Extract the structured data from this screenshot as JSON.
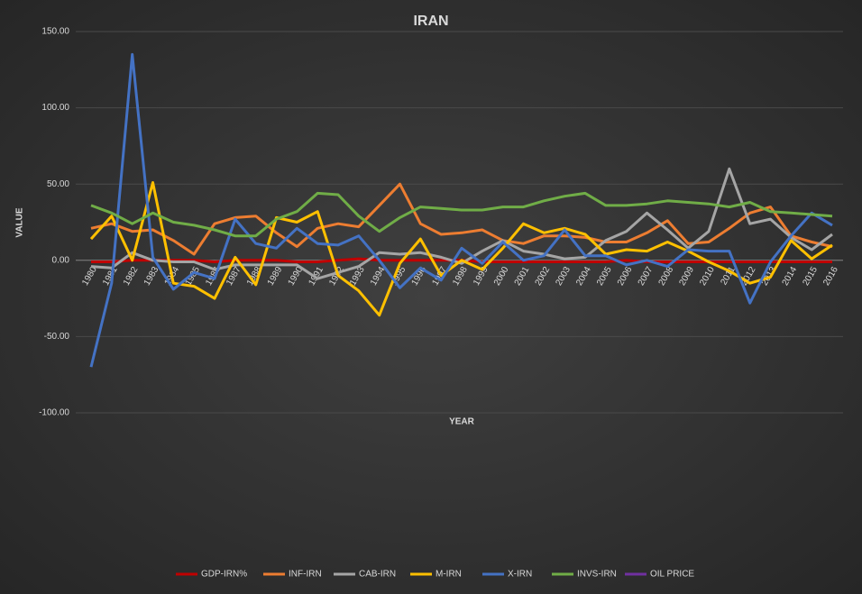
{
  "chart_data": {
    "type": "line",
    "title": "IRAN",
    "x_label": "YEAR",
    "y_label": "VALUE",
    "categories": [
      "1980",
      "1981",
      "1982",
      "1983",
      "1984",
      "1985",
      "1986",
      "1987",
      "1988",
      "1989",
      "1990",
      "1991",
      "1992",
      "1993",
      "1994",
      "1995",
      "1996",
      "1997",
      "1998",
      "1999",
      "2000",
      "2001",
      "2002",
      "2003",
      "2004",
      "2005",
      "2006",
      "2007",
      "2008",
      "2009",
      "2010",
      "2011",
      "2012",
      "2013",
      "2014",
      "2015",
      "2016"
    ],
    "ylim": [
      -100,
      150
    ],
    "yticks": [
      {
        "value": -100,
        "label": "-100.00"
      },
      {
        "value": -50,
        "label": "-50.00"
      },
      {
        "value": 0,
        "label": "0.00"
      },
      {
        "value": 50,
        "label": "50.00"
      },
      {
        "value": 100,
        "label": "100.00"
      },
      {
        "value": 150,
        "label": "150.00"
      }
    ],
    "grid": true,
    "legend": "bottom",
    "series": [
      {
        "name": "GDP-IRN%",
        "color": "#c00000",
        "values": [
          -1,
          -1,
          0,
          0,
          0,
          0,
          -1,
          0,
          0,
          0,
          -1,
          -1,
          0,
          1,
          0,
          0,
          0,
          0,
          0,
          -1,
          -1,
          -1,
          -1,
          -1,
          -1,
          -1,
          0,
          -1,
          -1,
          -1,
          -1,
          -1,
          -1,
          -1,
          -1,
          -1,
          -1
        ]
      },
      {
        "name": "INF-IRN",
        "color": "#ed7d31",
        "values": [
          21,
          24,
          19,
          20,
          13,
          4,
          24,
          28,
          29,
          18,
          9,
          21,
          24,
          22,
          36,
          50,
          24,
          17,
          18,
          20,
          13,
          11,
          16,
          16,
          15,
          12,
          12,
          18,
          26,
          11,
          12,
          21,
          31,
          35,
          16,
          12,
          9
        ]
      },
      {
        "name": "CAB-IRN",
        "color": "#a5a5a5",
        "values": [
          -4,
          -5,
          5,
          0,
          -1,
          -1,
          -6,
          -3,
          -3,
          -3,
          -3,
          -12,
          -8,
          -4,
          5,
          4,
          5,
          2,
          -2,
          6,
          13,
          6,
          4,
          1,
          2,
          13,
          19,
          31,
          20,
          8,
          19,
          60,
          24,
          27,
          15,
          7,
          17
        ]
      },
      {
        "name": "M-IRN",
        "color": "#ffc000",
        "values": [
          14,
          29,
          0,
          51,
          -15,
          -17,
          -25,
          2,
          -16,
          28,
          25,
          32,
          -10,
          -20,
          -36,
          -2,
          14,
          -10,
          0,
          -6,
          8,
          24,
          18,
          21,
          17,
          4,
          7,
          6,
          12,
          6,
          -1,
          -7,
          -15,
          -11,
          13,
          1,
          10
        ]
      },
      {
        "name": "X-IRN",
        "color": "#4472c4",
        "values": [
          -70,
          -15,
          135,
          2,
          -19,
          -8,
          -12,
          27,
          11,
          8,
          21,
          11,
          10,
          16,
          0,
          -18,
          -5,
          -13,
          8,
          -2,
          12,
          0,
          3,
          20,
          3,
          3,
          -3,
          0,
          -4,
          7,
          6,
          6,
          -28,
          -1,
          16,
          31,
          23
        ]
      },
      {
        "name": "INVS-IRN",
        "color": "#70ad47",
        "values": [
          36,
          31,
          24,
          31,
          25,
          23,
          20,
          16,
          16,
          27,
          32,
          44,
          43,
          29,
          19,
          28,
          35,
          34,
          33,
          33,
          35,
          35,
          39,
          42,
          44,
          36,
          36,
          37,
          39,
          38,
          37,
          35,
          38,
          32,
          31,
          30,
          29
        ]
      },
      {
        "name": "OIL PRICE",
        "color": "#7030a0",
        "values": [
          null,
          null,
          null,
          null,
          null,
          null,
          null,
          null,
          null,
          null,
          null,
          null,
          null,
          null,
          null,
          null,
          null,
          null,
          null,
          null,
          null,
          null,
          null,
          null,
          null,
          null,
          null,
          null,
          null,
          null,
          null,
          null,
          null,
          null,
          null,
          null,
          null
        ]
      }
    ]
  }
}
